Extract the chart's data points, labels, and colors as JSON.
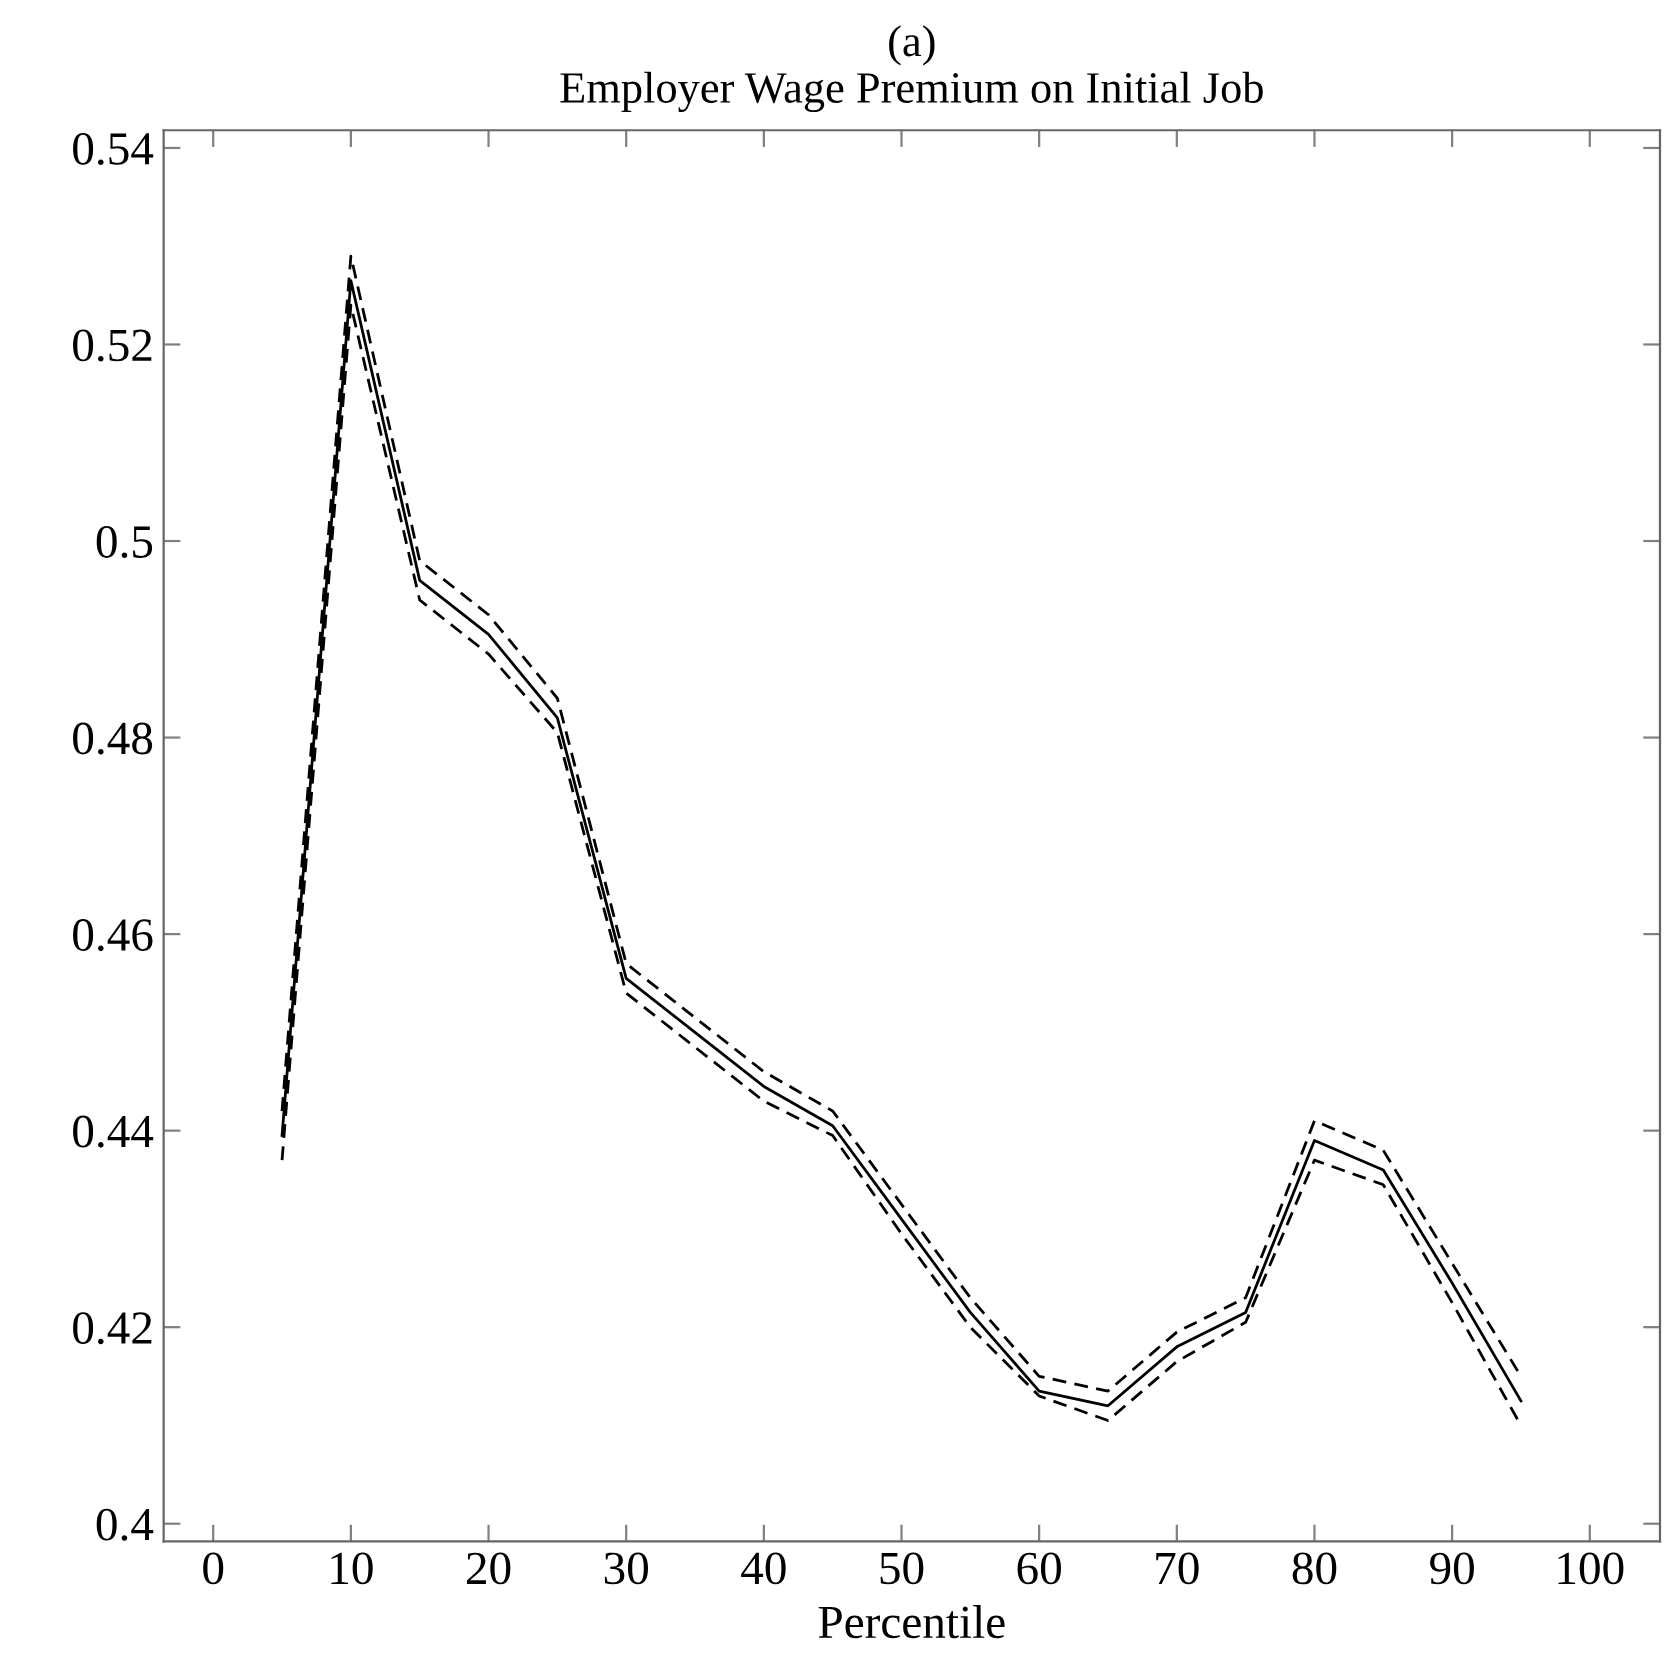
{
  "chart_data": {
    "type": "line",
    "title": "(a)\nEmployer Wage Premium on Initial Job",
    "xlabel": "Percentile",
    "x": [
      5,
      10,
      15,
      20,
      25,
      30,
      35,
      40,
      45,
      50,
      55,
      60,
      65,
      70,
      75,
      80,
      85,
      90,
      95
    ],
    "series": [
      {
        "color": "#000000",
        "line_style": "solid",
        "values": [
          0.4395,
          0.5265,
          0.496,
          0.4905,
          0.482,
          0.4555,
          0.45,
          0.4445,
          0.4405,
          0.431,
          0.4215,
          0.4135,
          0.412,
          0.418,
          0.4215,
          0.439,
          0.436,
          0.4245,
          0.4125
        ]
      },
      {
        "color": "#000000",
        "line_style": "dashed",
        "values": [
          0.442,
          0.529,
          0.498,
          0.4925,
          0.484,
          0.457,
          0.4515,
          0.446,
          0.442,
          0.4325,
          0.423,
          0.415,
          0.4135,
          0.4195,
          0.423,
          0.441,
          0.438,
          0.4265,
          0.415
        ]
      },
      {
        "color": "#000000",
        "line_style": "dashed",
        "values": [
          0.437,
          0.524,
          0.494,
          0.4885,
          0.4805,
          0.454,
          0.4485,
          0.443,
          0.4395,
          0.4295,
          0.42,
          0.413,
          0.4105,
          0.4165,
          0.4205,
          0.437,
          0.4345,
          0.4225,
          0.41
        ]
      }
    ],
    "xlim": [
      -3.6,
      105.1
    ],
    "ylim": [
      0.3982,
      0.5418
    ],
    "xticks": [
      0,
      10,
      20,
      30,
      40,
      50,
      60,
      70,
      80,
      90,
      100
    ],
    "yticks": [
      0.4,
      0.42,
      0.44,
      0.46,
      0.48,
      0.5,
      0.52,
      0.54
    ],
    "grid": false,
    "legend": false
  }
}
